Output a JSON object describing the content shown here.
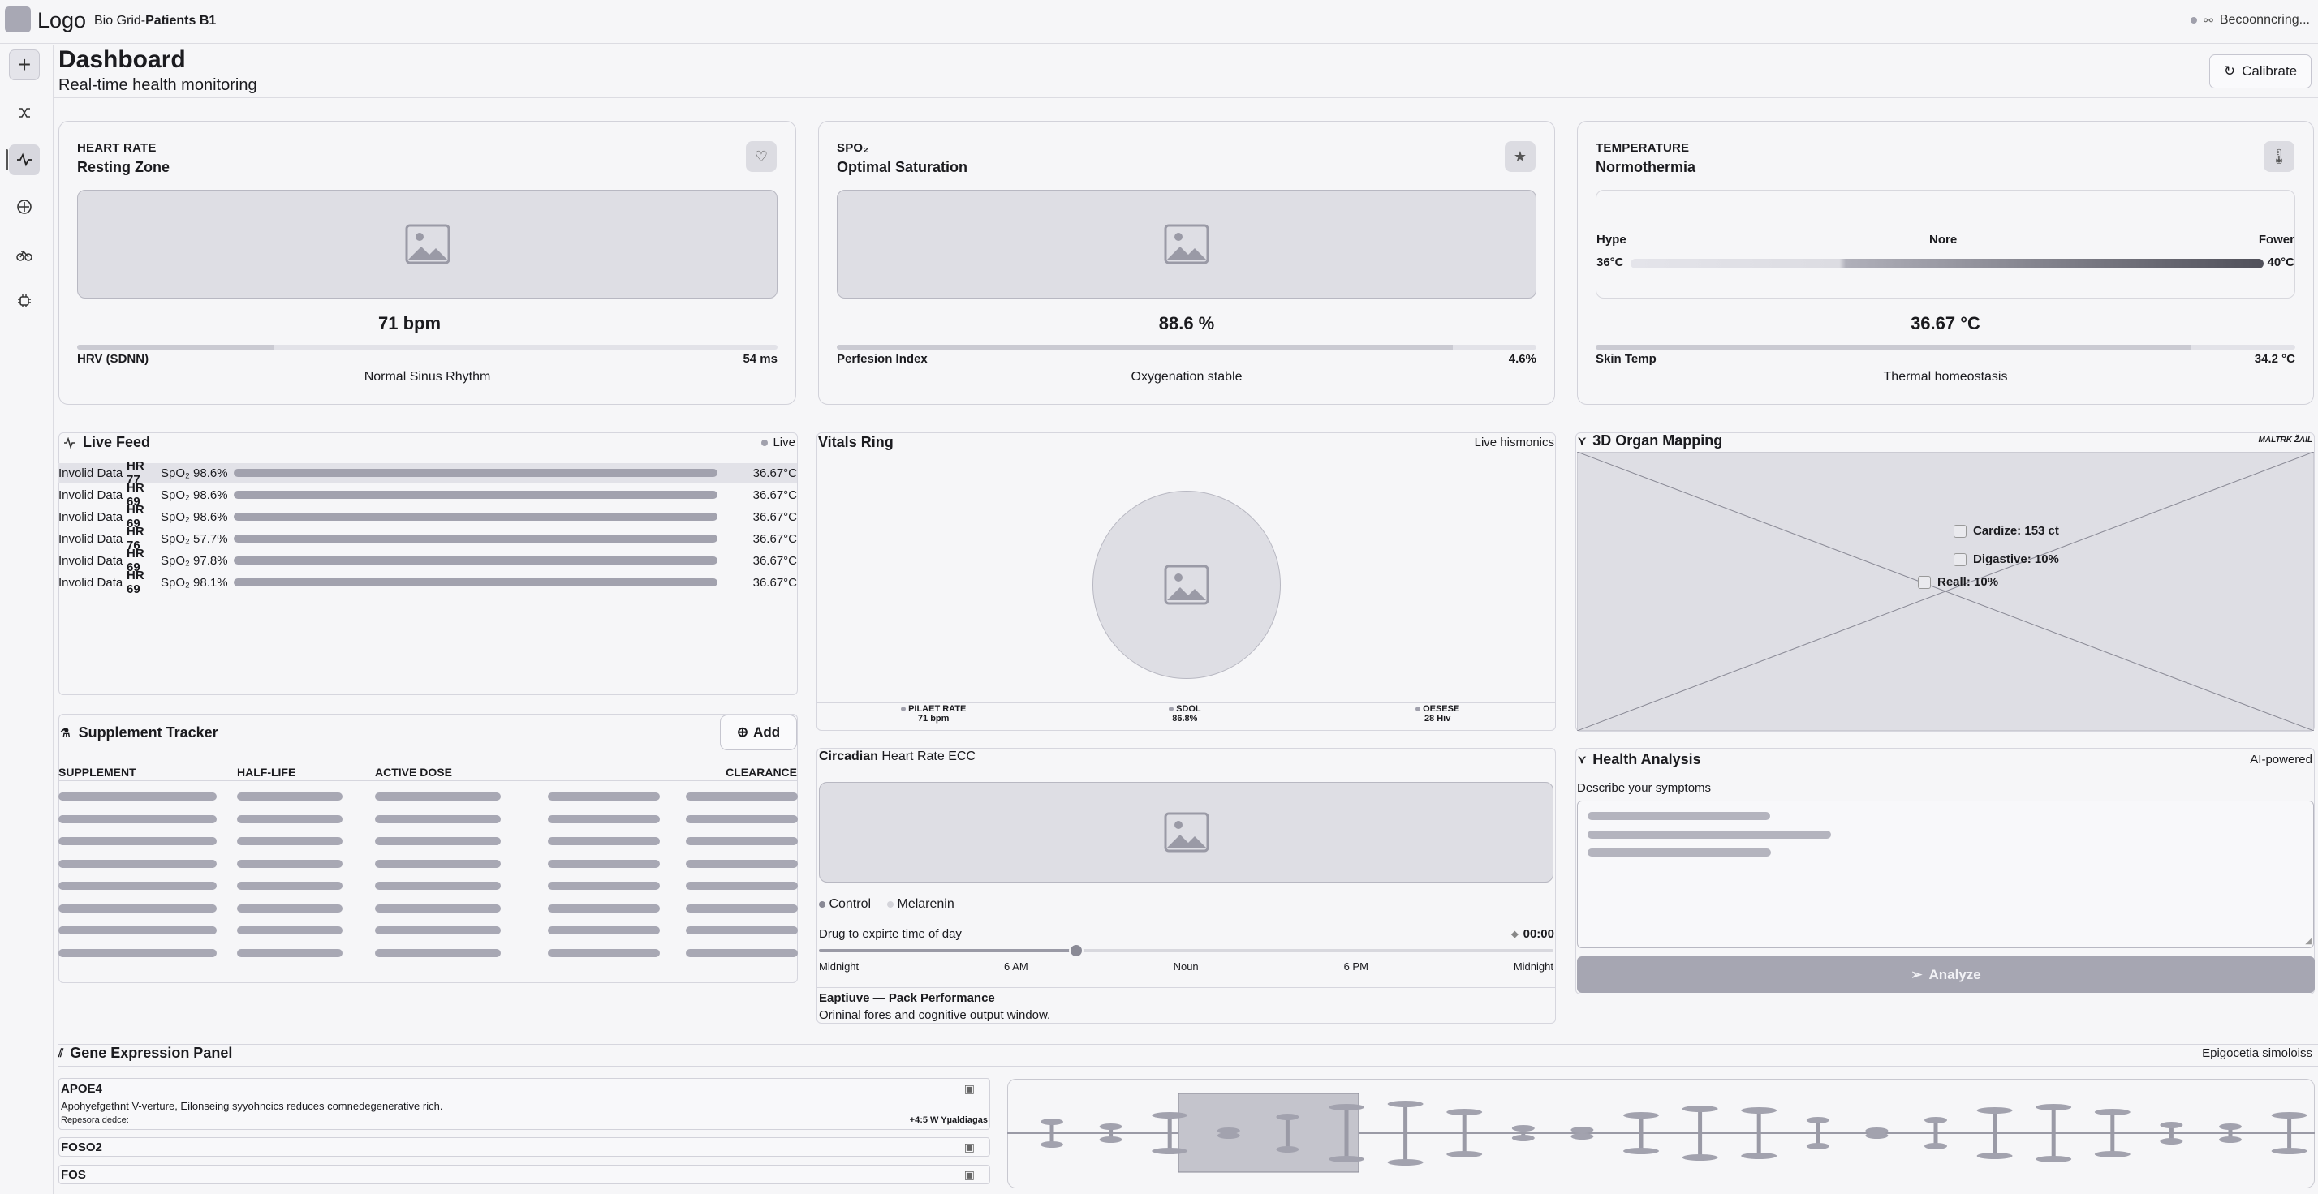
{
  "app": {
    "logo": "Logo",
    "breadcrumb_prefix": "Bio Grid-",
    "breadcrumb_current": "Patients B1",
    "connection": "Becoonncring..."
  },
  "page": {
    "title": "Dashboard",
    "subtitle": "Real-time health monitoring",
    "calibrate_label": "Calibrate"
  },
  "sidebar": {
    "items": [
      "plus-icon",
      "shuffle-icon",
      "activity-icon",
      "crosshair-icon",
      "bike-icon",
      "chip-icon"
    ],
    "active_index": 2
  },
  "heart": {
    "kicker": "HEART RATE",
    "title": "Resting Zone",
    "value": "71 bpm",
    "metric_label": "HRV (SDNN)",
    "metric_value": "54 ms",
    "metric_fill_pct": 28,
    "note": "Normal Sinus Rhythm"
  },
  "spo2": {
    "kicker": "SPO₂",
    "title": "Optimal Saturation",
    "value": "88.6 %",
    "metric_label": "Perfesion Index",
    "metric_value": "4.6%",
    "metric_fill_pct": 88,
    "note": "Oxygenation stable"
  },
  "temp": {
    "kicker": "TEMPERATURE",
    "title": "Normothermia",
    "scale_low": "Hype",
    "scale_mid": "Nore",
    "scale_high": "Fower",
    "range_low": "36°C",
    "range_high": "40°C",
    "value": "36.67 °C",
    "metric_label": "Skin Temp",
    "metric_value": "34.2 °C",
    "metric_fill_pct": 85,
    "note": "Thermal homeostasis"
  },
  "feed": {
    "title": "Live Feed",
    "status": "Live",
    "rows": [
      {
        "label": "Involid Data",
        "hr": "HR 77",
        "spo": "SpO₂ 98.6%",
        "temp": "36.67°C"
      },
      {
        "label": "Involid Data",
        "hr": "HR 69",
        "spo": "SpO₂ 98.6%",
        "temp": "36.67°C"
      },
      {
        "label": "Involid Data",
        "hr": "HR 69",
        "spo": "SpO₂ 98.6%",
        "temp": "36.67°C"
      },
      {
        "label": "Involid Data",
        "hr": "HR 76",
        "spo": "SpO₂ 57.7%",
        "temp": "36.67°C"
      },
      {
        "label": "Involid Data",
        "hr": "HR 69",
        "spo": "SpO₂ 97.8%",
        "temp": "36.67°C"
      },
      {
        "label": "Involid Data",
        "hr": "HR 69",
        "spo": "SpO₂ 98.1%",
        "temp": "36.67°C"
      }
    ]
  },
  "ring": {
    "title": "Vitals Ring",
    "status": "Live hismonics",
    "stats": [
      {
        "label": "PILAET RATE",
        "value": "71 bpm"
      },
      {
        "label": "SDOL",
        "value": "86.8%"
      },
      {
        "label": "OESESE",
        "value": "28 Hiv"
      }
    ]
  },
  "organ": {
    "title": "3D Organ Mapping",
    "badge": "MALTRK ŽAIL",
    "items": [
      {
        "label": "Cardize: 153 ct"
      },
      {
        "label": "Digastive: 10%"
      },
      {
        "label": "Reall: 10%"
      }
    ]
  },
  "supplement": {
    "title": "Supplement Tracker",
    "add_label": "Add",
    "columns": [
      "SUPPLEMENT",
      "HALF-LIFE",
      "ACTIVE DOSE",
      "",
      "CLEARANCE"
    ],
    "row_count": 8
  },
  "circadian": {
    "title": "Circadian",
    "subtitle": "Heart Rate ECC",
    "legend": [
      "Control",
      "Melarenin"
    ],
    "slider_label": "Drug to expirte time of day",
    "slider_value": "00:00",
    "slider_fraction": 0.35,
    "ticks": [
      "Midnight",
      "6 AM",
      "Noun",
      "6 PM",
      "Midnight"
    ],
    "window_title": "Eaptiuve — Pack Performance",
    "window_desc": "Orininal fores and cognitive output window."
  },
  "analysis": {
    "title": "Health Analysis",
    "badge": "AI-powered",
    "prompt": "Describe your symptoms",
    "button": "Analyze"
  },
  "gene": {
    "title": "Gene Expression Panel",
    "badge": "Epigocetia simoloiss",
    "genes": [
      {
        "name": "APOE4",
        "desc": "Apohyefgethnt V-verture, Eilonseing syyohncics reduces comnedegenerative rich.",
        "meta": "Repesora dedce:",
        "meta_value": "+4:5 W Yµaldiagas"
      },
      {
        "name": "FOSO2"
      },
      {
        "name": "FOS"
      }
    ]
  },
  "colors": {
    "bg": "#f6f6f8",
    "border": "#d2d2da",
    "placeholder": "#dedee4",
    "accent_gray": "#a2a2ae"
  }
}
